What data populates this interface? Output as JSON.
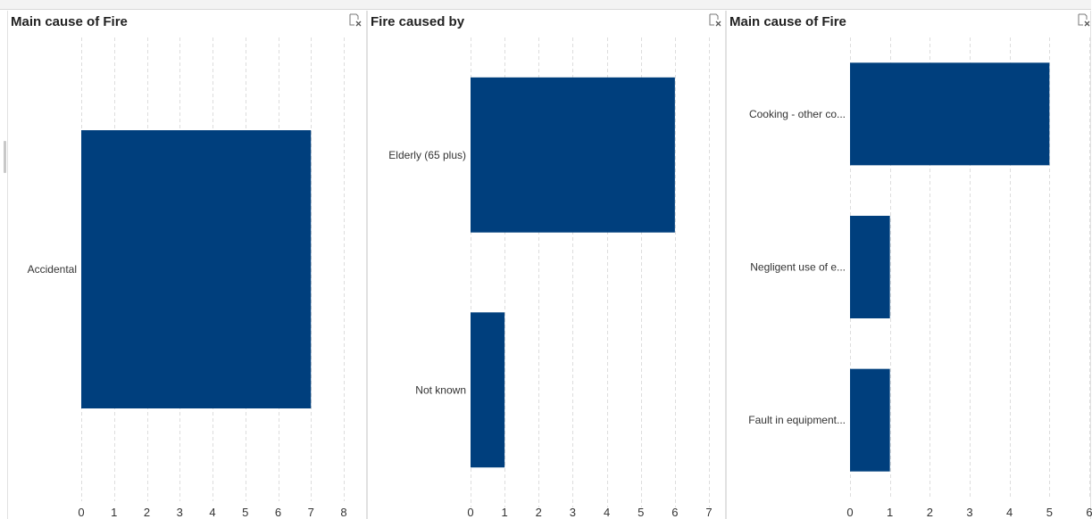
{
  "panels": [
    {
      "title": "Main cause of Fire",
      "clear_icon": "clear-filter-icon",
      "chart_data": {
        "type": "bar",
        "orientation": "horizontal",
        "categories": [
          "Accidental"
        ],
        "values": [
          7
        ],
        "xlim": [
          0,
          8
        ],
        "x_ticks": [
          "0",
          "1",
          "2",
          "3",
          "4",
          "5",
          "6",
          "7",
          "8"
        ],
        "grid": "vertical dashed",
        "color": "#003F7D"
      }
    },
    {
      "title": "Fire caused by",
      "clear_icon": "clear-filter-icon",
      "chart_data": {
        "type": "bar",
        "orientation": "horizontal",
        "categories": [
          "Elderly (65 plus)",
          "Not known"
        ],
        "values": [
          6,
          1
        ],
        "xlim": [
          0,
          7
        ],
        "x_ticks": [
          "0",
          "1",
          "2",
          "3",
          "4",
          "5",
          "6",
          "7"
        ],
        "grid": "vertical dashed",
        "color": "#003F7D"
      }
    },
    {
      "title": "Main cause of Fire",
      "clear_icon": "clear-filter-icon",
      "chart_data": {
        "type": "bar",
        "orientation": "horizontal",
        "categories": [
          "Cooking - other co...",
          "Negligent use of e...",
          "Fault in equipment..."
        ],
        "values": [
          5,
          1,
          1
        ],
        "xlim": [
          0,
          6
        ],
        "x_ticks": [
          "0",
          "1",
          "2",
          "3",
          "4",
          "5",
          "6"
        ],
        "grid": "vertical dashed",
        "color": "#003F7D"
      }
    }
  ]
}
